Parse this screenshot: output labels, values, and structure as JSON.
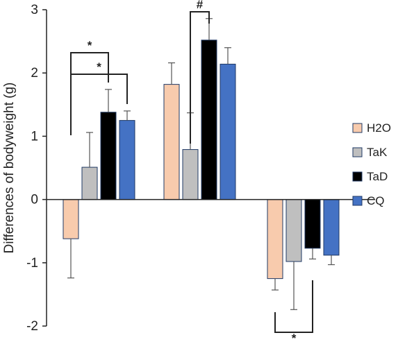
{
  "chart_data": {
    "type": "bar",
    "title": "",
    "xlabel": "",
    "ylabel": "Differences of bodyweight (g)",
    "ylim": [
      -2,
      3
    ],
    "yticks": [
      -2,
      -1,
      0,
      1,
      2,
      3
    ],
    "ytick_labels": [
      "-2",
      "-1",
      "0",
      "1",
      "2",
      "3"
    ],
    "grid": false,
    "legend_position": "right",
    "groups": 3,
    "series": [
      {
        "name": "H2O",
        "color": "#f8cbad",
        "values": [
          -0.62,
          1.82,
          -1.25
        ],
        "errors": [
          0.62,
          0.34,
          0.18
        ]
      },
      {
        "name": "TaK",
        "color": "#bfbfbf",
        "values": [
          0.51,
          0.79,
          -0.98
        ],
        "errors": [
          0.55,
          0.58,
          0.76
        ]
      },
      {
        "name": "TaD",
        "color": "#000000",
        "values": [
          1.38,
          2.52,
          -0.77
        ],
        "errors": [
          0.36,
          0.34,
          0.17
        ]
      },
      {
        "name": "CQ",
        "color": "#4472c4",
        "values": [
          1.25,
          2.14,
          -0.88
        ],
        "errors": [
          0.15,
          0.26,
          0.15
        ]
      }
    ],
    "annotations": [
      {
        "label": "*",
        "group": 0,
        "from": "H2O",
        "to": "TaD",
        "side": "top"
      },
      {
        "label": "*",
        "group": 0,
        "from": "H2O",
        "to": "CQ",
        "side": "top"
      },
      {
        "label": "#",
        "group": 1,
        "from": "TaK",
        "to": "TaD",
        "side": "top"
      },
      {
        "label": "*",
        "group": 2,
        "from": "H2O",
        "to": "TaD",
        "side": "bottom"
      }
    ]
  }
}
